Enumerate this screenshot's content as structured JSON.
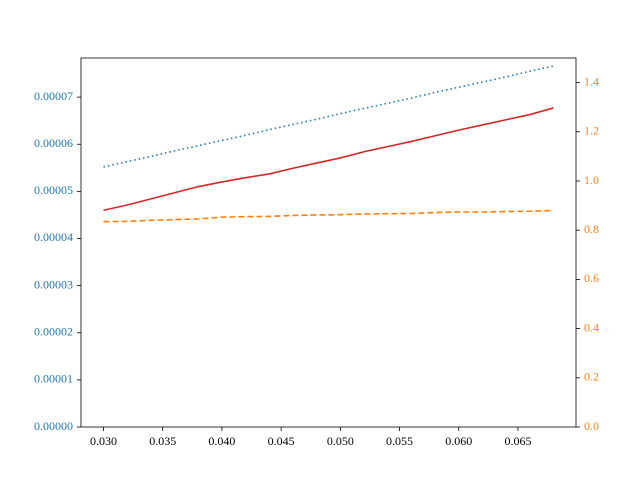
{
  "chart_data": {
    "type": "line",
    "x": [
      0.03,
      0.032,
      0.034,
      0.036,
      0.038,
      0.04,
      0.042,
      0.044,
      0.046,
      0.048,
      0.05,
      0.052,
      0.054,
      0.056,
      0.058,
      0.06,
      0.062,
      0.064,
      0.066,
      0.068
    ],
    "series": [
      {
        "color": "#1f77b4",
        "linestyle": "dotted",
        "axis": "y",
        "values": [
          5.52e-05,
          5.63e-05,
          5.74e-05,
          5.86e-05,
          5.97e-05,
          6.08e-05,
          6.19e-05,
          6.31e-05,
          6.42e-05,
          6.53e-05,
          6.65e-05,
          6.76e-05,
          6.87e-05,
          6.98e-05,
          7.1e-05,
          7.21e-05,
          7.32e-05,
          7.43e-05,
          7.55e-05,
          7.66e-05
        ]
      },
      {
        "color": "#d62728",
        "linestyle": "solid",
        "axis": "y",
        "values": [
          4.6e-05,
          4.71e-05,
          4.84e-05,
          4.97e-05,
          5.1e-05,
          5.2e-05,
          5.29e-05,
          5.37e-05,
          5.49e-05,
          5.6e-05,
          5.71e-05,
          5.84e-05,
          5.95e-05,
          6.06e-05,
          6.18e-05,
          6.3e-05,
          6.41e-05,
          6.52e-05,
          6.63e-05,
          6.77e-05
        ]
      },
      {
        "color": "#ff7f0e",
        "linestyle": "dashed",
        "axis": "y2",
        "values": [
          0.835,
          0.836,
          0.84,
          0.843,
          0.846,
          0.853,
          0.855,
          0.856,
          0.86,
          0.862,
          0.863,
          0.866,
          0.867,
          0.868,
          0.872,
          0.874,
          0.874,
          0.876,
          0.877,
          0.88
        ]
      }
    ],
    "xlim": [
      0.0281,
      0.0699
    ],
    "xticks": [
      {
        "value": 0.03,
        "label": "0.030"
      },
      0.035,
      {
        "value": 0.04,
        "label": "0.040"
      },
      0.045,
      {
        "value": 0.05,
        "label": "0.050"
      },
      0.055,
      {
        "value": 0.06,
        "label": "0.060"
      },
      0.065
    ],
    "ylim": [
      0,
      7.83e-05
    ],
    "yticks": [
      {
        "value": 0,
        "label": "0.00000"
      },
      1e-05,
      2e-05,
      3e-05,
      4e-05,
      5e-05,
      6e-05,
      7e-05
    ],
    "y_tick_color": "#1f77b4",
    "y2lim": [
      0,
      1.5
    ],
    "y2ticks": [
      {
        "value": 0,
        "label": "0.0"
      },
      0.2,
      0.4,
      0.6,
      0.8,
      {
        "value": 1,
        "label": "1.0"
      },
      1.2,
      1.4
    ],
    "y2_tick_color": "#ff7f0e"
  }
}
